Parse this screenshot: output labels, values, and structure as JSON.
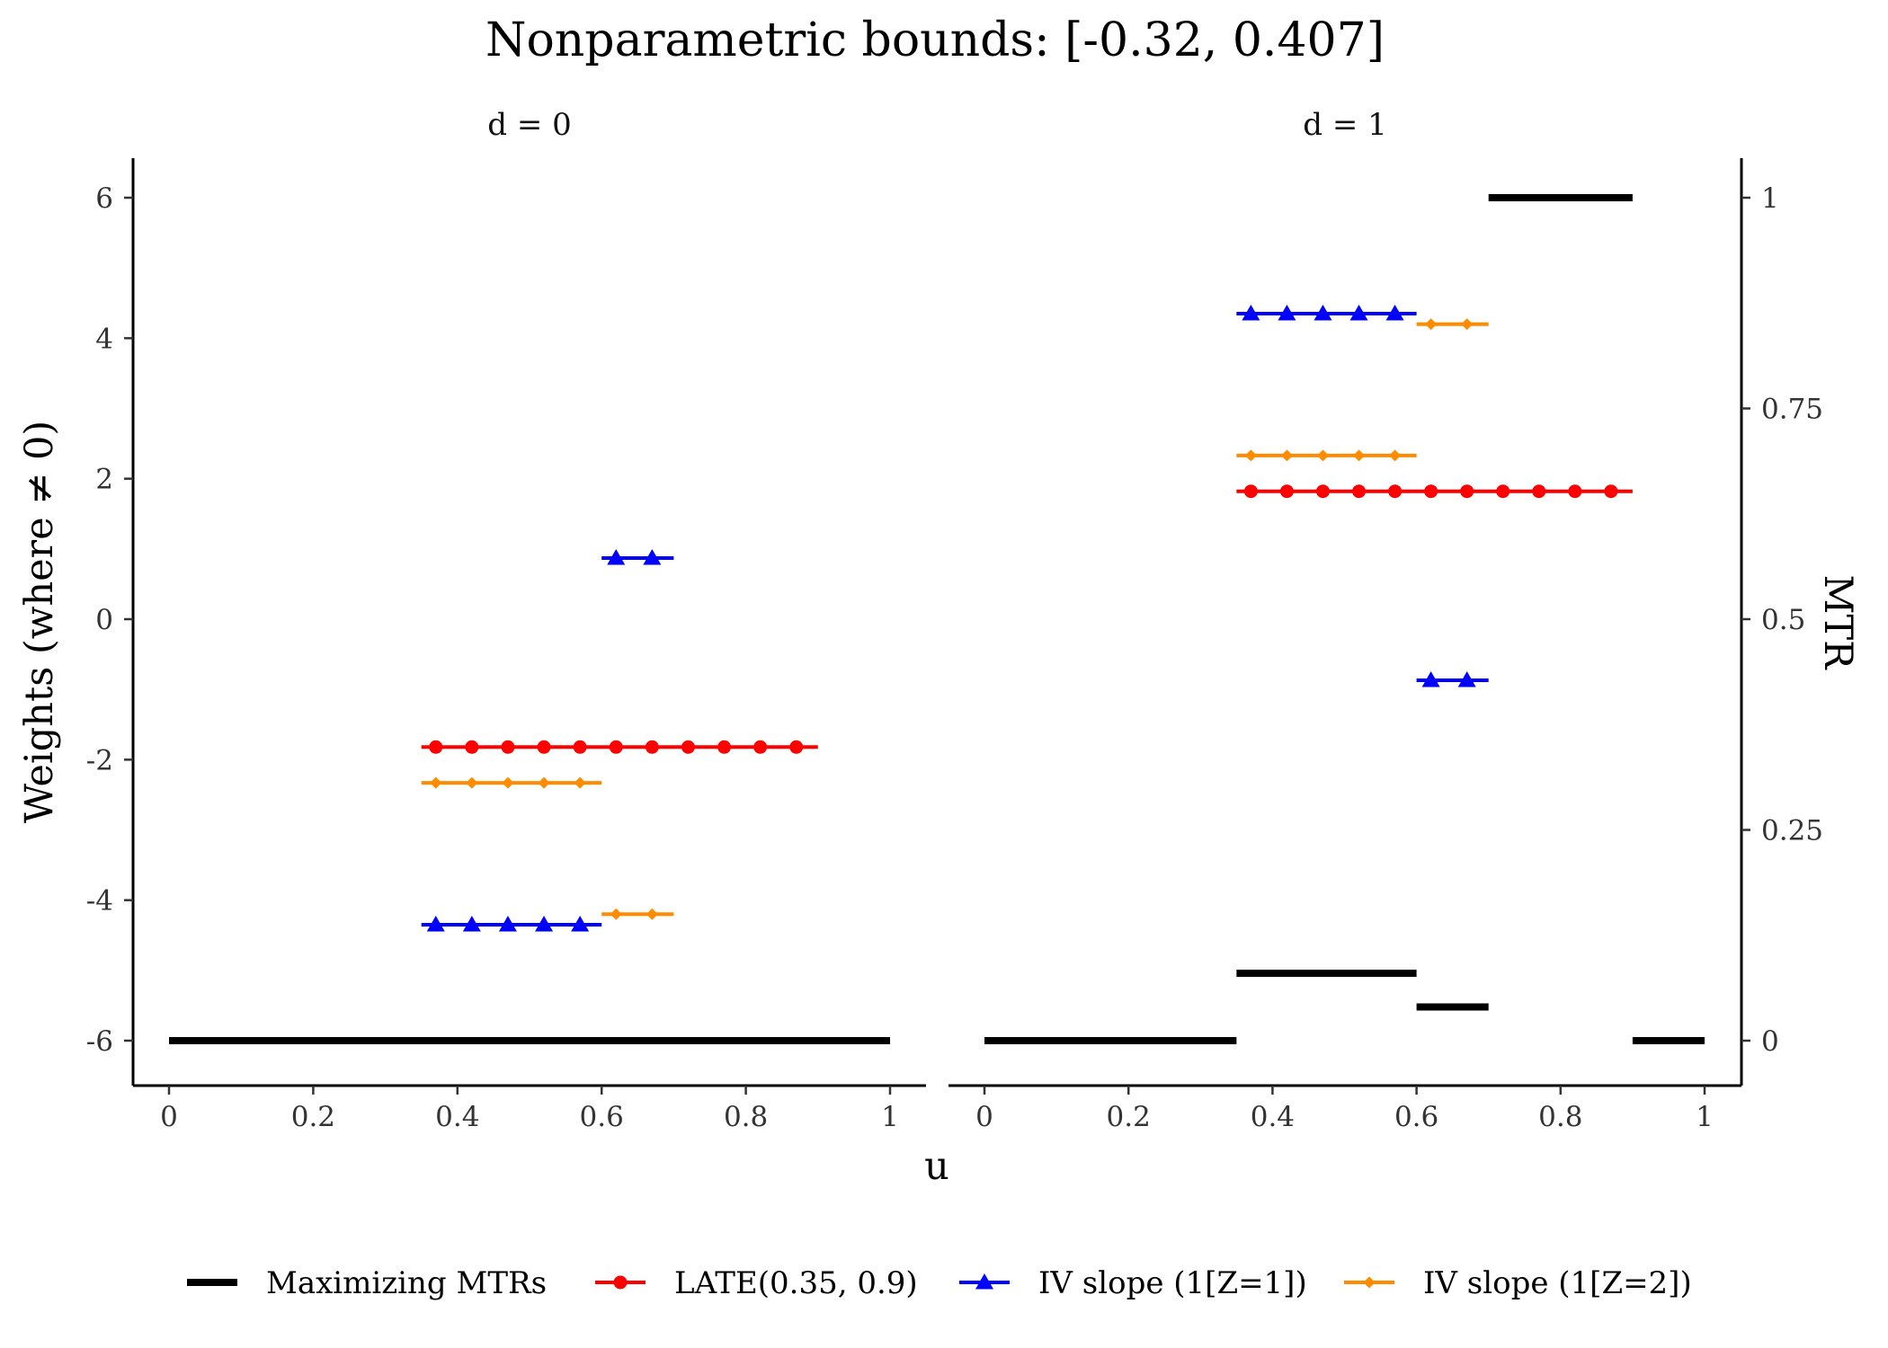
{
  "chart_data": {
    "type": "line",
    "title": "Nonparametric bounds: [-0.32, 0.407]",
    "xlabel": "u",
    "ylabel_left": "Weights (where ≠ 0)",
    "ylabel_right": "MTR",
    "xlim": [
      0,
      1
    ],
    "ylim_left": [
      -6,
      6
    ],
    "ylim_right": [
      0,
      1
    ],
    "x_ticks": [
      "0",
      "0.2",
      "0.4",
      "0.6",
      "0.8",
      "1"
    ],
    "x_tick_values": [
      0,
      0.2,
      0.4,
      0.6,
      0.8,
      1
    ],
    "y_ticks_left": [
      "-6",
      "-4",
      "-2",
      "0",
      "2",
      "4",
      "6"
    ],
    "y_tick_values_left": [
      -6,
      -4,
      -2,
      0,
      2,
      4,
      6
    ],
    "y_ticks_right": [
      "0",
      "0.25",
      "0.5",
      "0.75",
      "1"
    ],
    "y_tick_values_right": [
      0,
      0.25,
      0.5,
      0.75,
      1
    ],
    "grid": false,
    "legend_position": "bottom",
    "legend": [
      {
        "key": "mtr",
        "label": "Maximizing MTRs",
        "color": "#000000",
        "marker": "none"
      },
      {
        "key": "late",
        "label": "LATE(0.35, 0.9)",
        "color": "#ff0000",
        "marker": "circle"
      },
      {
        "key": "iv1",
        "label": "IV slope (1[Z=1])",
        "color": "#0000ff",
        "marker": "triangle"
      },
      {
        "key": "iv2",
        "label": "IV slope (1[Z=2])",
        "color": "#ff8c00",
        "marker": "diamond"
      }
    ],
    "panels": [
      {
        "strip": "d = 0",
        "mtr": [
          {
            "x0": 0,
            "x1": 1,
            "mtr": 0
          }
        ],
        "weights": [
          {
            "series": "late",
            "x0": 0.35,
            "x1": 0.9,
            "weight": -1.82,
            "points": [
              0.37,
              0.42,
              0.47,
              0.52,
              0.57,
              0.62,
              0.67,
              0.72,
              0.77,
              0.82,
              0.87
            ]
          },
          {
            "series": "iv1",
            "x0": 0.35,
            "x1": 0.6,
            "weight": -4.35,
            "points": [
              0.37,
              0.42,
              0.47,
              0.52,
              0.57
            ]
          },
          {
            "series": "iv1",
            "x0": 0.6,
            "x1": 0.7,
            "weight": 0.87,
            "points": [
              0.62,
              0.67
            ]
          },
          {
            "series": "iv2",
            "x0": 0.35,
            "x1": 0.6,
            "weight": -2.33,
            "points": [
              0.37,
              0.42,
              0.47,
              0.52,
              0.57
            ]
          },
          {
            "series": "iv2",
            "x0": 0.6,
            "x1": 0.7,
            "weight": -4.2,
            "points": [
              0.62,
              0.67
            ]
          }
        ]
      },
      {
        "strip": "d = 1",
        "mtr": [
          {
            "x0": 0,
            "x1": 0.35,
            "mtr": 0
          },
          {
            "x0": 0.35,
            "x1": 0.6,
            "mtr": 0.08
          },
          {
            "x0": 0.6,
            "x1": 0.7,
            "mtr": 0.04
          },
          {
            "x0": 0.7,
            "x1": 0.9,
            "mtr": 1
          },
          {
            "x0": 0.9,
            "x1": 1,
            "mtr": 0
          }
        ],
        "weights": [
          {
            "series": "late",
            "x0": 0.35,
            "x1": 0.9,
            "weight": 1.82,
            "points": [
              0.37,
              0.42,
              0.47,
              0.52,
              0.57,
              0.62,
              0.67,
              0.72,
              0.77,
              0.82,
              0.87
            ]
          },
          {
            "series": "iv1",
            "x0": 0.35,
            "x1": 0.6,
            "weight": 4.35,
            "points": [
              0.37,
              0.42,
              0.47,
              0.52,
              0.57
            ]
          },
          {
            "series": "iv1",
            "x0": 0.6,
            "x1": 0.7,
            "weight": -0.87,
            "points": [
              0.62,
              0.67
            ]
          },
          {
            "series": "iv2",
            "x0": 0.35,
            "x1": 0.6,
            "weight": 2.33,
            "points": [
              0.37,
              0.42,
              0.47,
              0.52,
              0.57
            ]
          },
          {
            "series": "iv2",
            "x0": 0.6,
            "x1": 0.7,
            "weight": 4.2,
            "points": [
              0.62,
              0.67
            ]
          }
        ]
      }
    ]
  }
}
